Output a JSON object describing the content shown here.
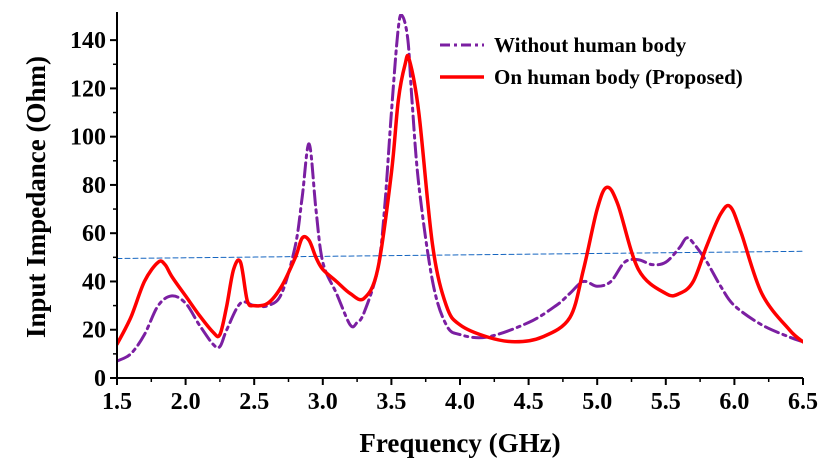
{
  "chart_data": {
    "type": "line",
    "title": "",
    "xlabel": "Frequency (GHz)",
    "ylabel": "Input Impedance (Ohm)",
    "xlim": [
      1.5,
      6.5
    ],
    "ylim": [
      0,
      150
    ],
    "xticks": [
      "1.5",
      "2.0",
      "2.5",
      "3.0",
      "3.5",
      "4.0",
      "4.5",
      "5.0",
      "5.5",
      "6.0",
      "6.5"
    ],
    "yticks": [
      "0",
      "20",
      "40",
      "60",
      "80",
      "100",
      "120",
      "140"
    ],
    "legend_position": "top-right",
    "grid": false,
    "series": [
      {
        "name": "Without human body",
        "color": "#7b1fa2",
        "style": "dash-dot",
        "x": [
          1.5,
          1.6,
          1.7,
          1.8,
          1.9,
          2.0,
          2.1,
          2.2,
          2.25,
          2.3,
          2.4,
          2.5,
          2.6,
          2.7,
          2.8,
          2.85,
          2.9,
          2.95,
          3.0,
          3.1,
          3.2,
          3.25,
          3.3,
          3.4,
          3.45,
          3.5,
          3.55,
          3.58,
          3.62,
          3.65,
          3.7,
          3.8,
          3.9,
          4.0,
          4.2,
          4.5,
          4.7,
          4.8,
          4.9,
          5.0,
          5.1,
          5.2,
          5.3,
          5.4,
          5.5,
          5.6,
          5.65,
          5.7,
          5.8,
          5.9,
          6.0,
          6.2,
          6.4,
          6.5
        ],
        "y": [
          7,
          10,
          18,
          30,
          34,
          31,
          22,
          14,
          13,
          20,
          31,
          30,
          30,
          35,
          55,
          75,
          97,
          70,
          48,
          35,
          22,
          23,
          27,
          45,
          70,
          110,
          145,
          150,
          140,
          115,
          80,
          40,
          22,
          18,
          17,
          23,
          30,
          35,
          40,
          38,
          40,
          48,
          49,
          47,
          48,
          54,
          58,
          56,
          48,
          38,
          30,
          22,
          17,
          15
        ]
      },
      {
        "name": "On human body (Proposed)",
        "color": "#ff0000",
        "style": "solid",
        "x": [
          1.5,
          1.6,
          1.7,
          1.8,
          1.85,
          1.9,
          2.0,
          2.1,
          2.2,
          2.25,
          2.3,
          2.35,
          2.4,
          2.45,
          2.5,
          2.6,
          2.7,
          2.8,
          2.85,
          2.9,
          2.95,
          3.0,
          3.1,
          3.2,
          3.3,
          3.4,
          3.5,
          3.55,
          3.6,
          3.63,
          3.7,
          3.8,
          3.9,
          4.0,
          4.2,
          4.4,
          4.6,
          4.8,
          4.9,
          5.0,
          5.07,
          5.15,
          5.3,
          5.5,
          5.6,
          5.7,
          5.8,
          5.9,
          5.97,
          6.05,
          6.2,
          6.4,
          6.5
        ],
        "y": [
          14,
          25,
          40,
          48,
          47,
          42,
          34,
          26,
          19,
          18,
          30,
          45,
          48,
          32,
          30,
          31,
          38,
          50,
          58,
          57,
          50,
          45,
          40,
          35,
          33,
          45,
          85,
          115,
          130,
          132,
          110,
          55,
          30,
          22,
          17,
          15,
          17,
          25,
          45,
          70,
          79,
          72,
          45,
          35,
          35,
          40,
          55,
          68,
          71,
          60,
          35,
          20,
          15
        ]
      },
      {
        "name": "",
        "color": "#1565c0",
        "style": "dashed-thin",
        "x": [
          1.5,
          6.5
        ],
        "y": [
          49.5,
          52.5
        ]
      }
    ]
  }
}
